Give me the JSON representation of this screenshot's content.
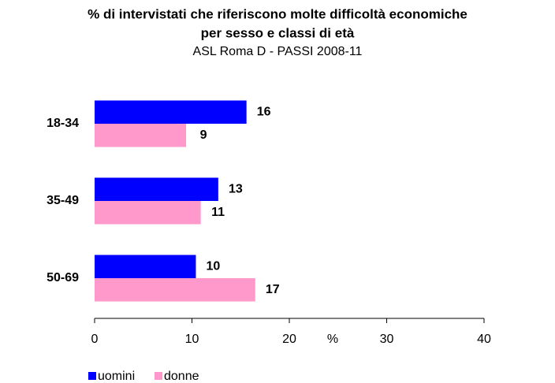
{
  "chart_data": {
    "type": "hbar",
    "title": [
      "% di intervistati che riferiscono molte difficoltà economiche",
      "per sesso e classi di età"
    ],
    "subtitle": "ASL Roma D - PASSI 2008-11",
    "x_label": "%",
    "categories": [
      "18-34",
      "35-49",
      "50-69"
    ],
    "series": [
      {
        "name": "uomini",
        "color": "#0000ff",
        "values": [
          15.6,
          12.7,
          10.4
        ],
        "value_labels": [
          "16",
          "13",
          "10"
        ]
      },
      {
        "name": "donne",
        "color": "#ff99cc",
        "values": [
          9.4,
          10.9,
          16.5
        ],
        "value_labels": [
          "9",
          "11",
          "17"
        ]
      }
    ],
    "xlim": [
      0,
      40
    ],
    "xticks": [
      0,
      10,
      20,
      30,
      40
    ],
    "grid": false,
    "legend": "bottom-left"
  }
}
